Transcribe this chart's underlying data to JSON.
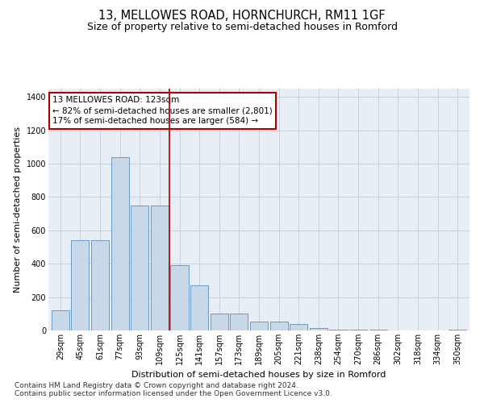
{
  "title": "13, MELLOWES ROAD, HORNCHURCH, RM11 1GF",
  "subtitle": "Size of property relative to semi-detached houses in Romford",
  "xlabel": "Distribution of semi-detached houses by size in Romford",
  "ylabel": "Number of semi-detached properties",
  "categories": [
    "29sqm",
    "45sqm",
    "61sqm",
    "77sqm",
    "93sqm",
    "109sqm",
    "125sqm",
    "141sqm",
    "157sqm",
    "173sqm",
    "189sqm",
    "205sqm",
    "221sqm",
    "238sqm",
    "254sqm",
    "270sqm",
    "286sqm",
    "302sqm",
    "318sqm",
    "334sqm",
    "350sqm"
  ],
  "values": [
    120,
    540,
    540,
    1040,
    750,
    750,
    390,
    270,
    100,
    100,
    55,
    55,
    40,
    15,
    5,
    5,
    5,
    0,
    0,
    0,
    5
  ],
  "bar_color": "#c8d8e8",
  "bar_edge_color": "#5a8fc0",
  "bg_color": "#e8eef5",
  "grid_color": "#c8d0dc",
  "annotation_box_text": "13 MELLOWES ROAD: 123sqm\n← 82% of semi-detached houses are smaller (2,801)\n17% of semi-detached houses are larger (584) →",
  "vline_x_index": 5.5,
  "vline_color": "#aa0000",
  "annotation_box_edge_color": "#aa0000",
  "footer_line1": "Contains HM Land Registry data © Crown copyright and database right 2024.",
  "footer_line2": "Contains public sector information licensed under the Open Government Licence v3.0.",
  "ylim": [
    0,
    1450
  ],
  "yticks": [
    0,
    200,
    400,
    600,
    800,
    1000,
    1200,
    1400
  ],
  "title_fontsize": 10.5,
  "subtitle_fontsize": 9,
  "axis_label_fontsize": 8,
  "tick_fontsize": 7,
  "footer_fontsize": 6.5,
  "annot_fontsize": 7.5
}
